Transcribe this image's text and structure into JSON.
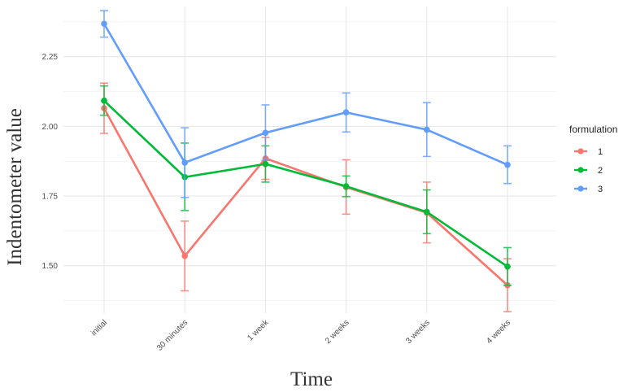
{
  "chart_data": {
    "type": "line",
    "title": "",
    "xlabel": "Time",
    "ylabel": "Indentometer value",
    "categories": [
      "initial",
      "30 minutes",
      "1 week",
      "2 weeks",
      "3 weeks",
      "4 weeks"
    ],
    "ylim": [
      1.33,
      2.43
    ],
    "yticks": [
      1.5,
      1.75,
      2.0,
      2.25
    ],
    "ytick_labels": [
      "1.50",
      "1.75",
      "2.00",
      "2.25"
    ],
    "grid": true,
    "error_bars": true,
    "legend": {
      "title": "formulation",
      "position": "right"
    },
    "series": [
      {
        "name": "1",
        "color": "#F8766D",
        "values": [
          2.065,
          1.535,
          1.885,
          1.782,
          1.69,
          1.43
        ],
        "err_low": [
          1.975,
          1.41,
          1.81,
          1.685,
          1.582,
          1.335
        ],
        "err_high": [
          2.155,
          1.66,
          1.96,
          1.88,
          1.8,
          1.525
        ]
      },
      {
        "name": "2",
        "color": "#00BA38",
        "values": [
          2.092,
          1.818,
          1.865,
          1.785,
          1.693,
          1.497
        ],
        "err_low": [
          2.04,
          1.698,
          1.8,
          1.748,
          1.615,
          1.43
        ],
        "err_high": [
          2.145,
          1.94,
          1.93,
          1.822,
          1.772,
          1.565
        ]
      },
      {
        "name": "3",
        "color": "#619CFF",
        "values": [
          2.368,
          1.87,
          1.977,
          2.05,
          1.988,
          1.862
        ],
        "err_low": [
          2.32,
          1.745,
          1.878,
          1.98,
          1.892,
          1.795
        ],
        "err_high": [
          2.415,
          1.995,
          2.077,
          2.12,
          2.085,
          1.93
        ]
      }
    ]
  }
}
